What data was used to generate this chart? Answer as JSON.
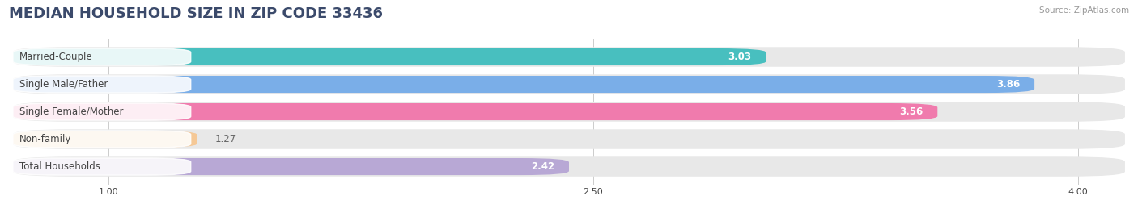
{
  "title": "MEDIAN HOUSEHOLD SIZE IN ZIP CODE 33436",
  "source": "Source: ZipAtlas.com",
  "categories": [
    "Married-Couple",
    "Single Male/Father",
    "Single Female/Mother",
    "Non-family",
    "Total Households"
  ],
  "values": [
    3.03,
    3.86,
    3.56,
    1.27,
    2.42
  ],
  "bar_colors": [
    "#48BFBF",
    "#7AAEE8",
    "#F07BAD",
    "#F5C896",
    "#B8A8D5"
  ],
  "track_color": "#E8E8E8",
  "xmin": 0.7,
  "xmax": 4.15,
  "xticks": [
    1.0,
    2.5,
    4.0
  ],
  "xticklabels": [
    "1.00",
    "2.50",
    "4.00"
  ],
  "value_color_inside": "white",
  "value_color_outside": "#666666",
  "label_color": "#444444",
  "title_color": "#3B4A6B",
  "source_color": "#999999",
  "title_fontsize": 13,
  "label_fontsize": 8.5,
  "value_fontsize": 8.5,
  "background_color": "#FFFFFF",
  "grid_color": "#CCCCCC"
}
